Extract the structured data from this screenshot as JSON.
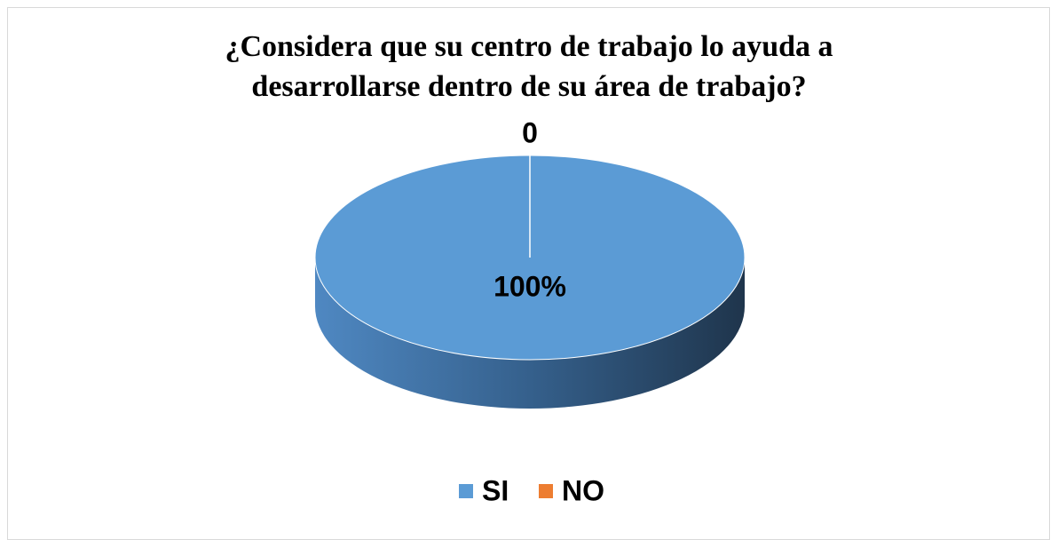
{
  "chart_data": {
    "type": "pie",
    "title": "¿Considera que su centro de trabajo lo ayuda a desarrollarse dentro de su área de trabajo?",
    "categories": [
      "SI",
      "NO"
    ],
    "values": [
      100,
      0
    ],
    "value_labels": [
      "100%",
      "0"
    ],
    "colors": [
      "#5b9bd5",
      "#ed7d31"
    ],
    "legend": "bottom"
  }
}
